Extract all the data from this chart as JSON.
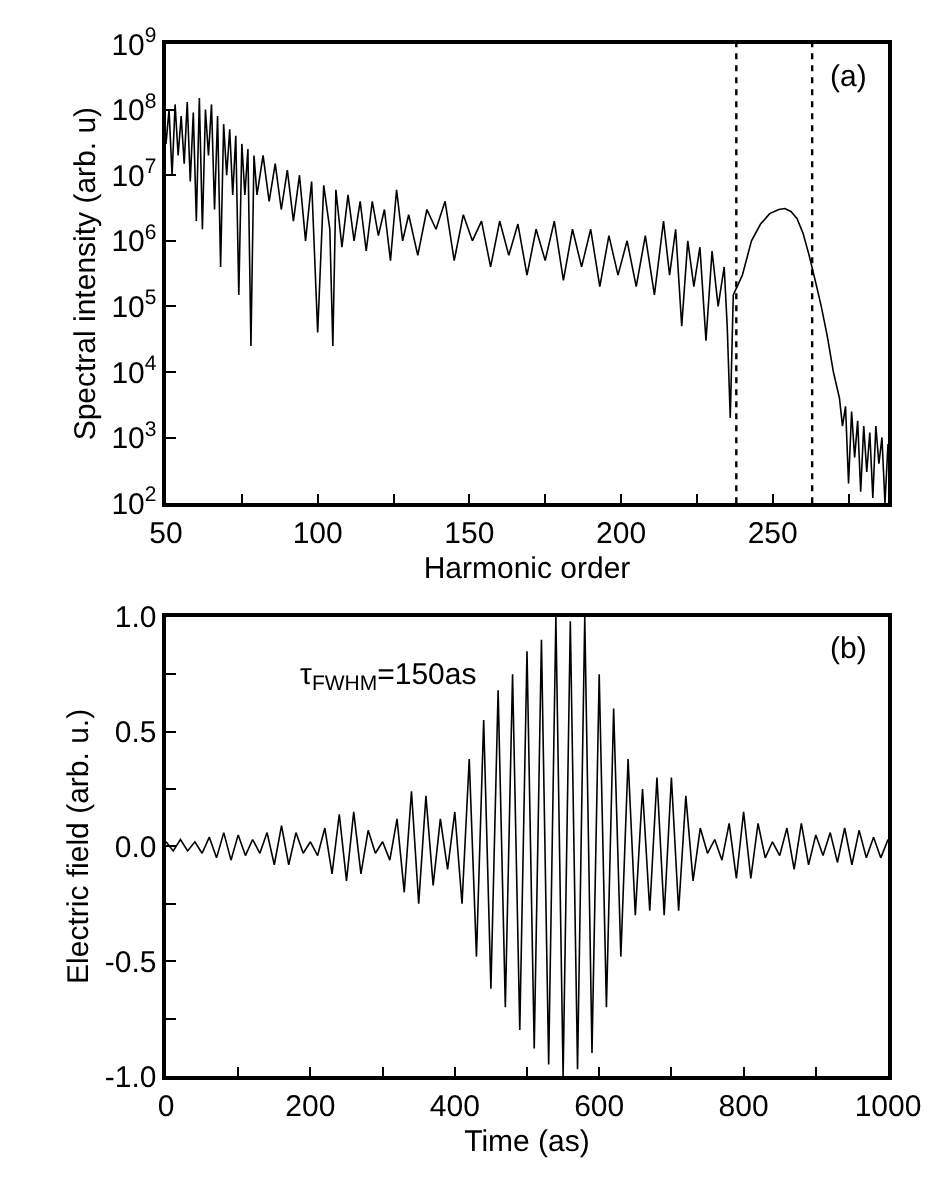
{
  "chart_data": [
    {
      "type": "line",
      "xlabel": "Harmonic order",
      "ylabel": "Spectral intensity (arb. u)",
      "log": "y",
      "marker": "none",
      "line_style": "solid",
      "xlim": [
        50,
        288
      ],
      "xticks": [
        50,
        {
          "value": 75,
          "label": null
        },
        100,
        {
          "value": 125,
          "label": null
        },
        150,
        {
          "value": 175,
          "label": null
        },
        200,
        {
          "value": 225,
          "label": null
        },
        250,
        {
          "value": 275,
          "label": null
        }
      ],
      "ylim": [
        100,
        1000000000
      ],
      "yticks": [
        {
          "value": 100,
          "label": "10$^{2}$"
        },
        {
          "value": 1000,
          "label": "10$^{3}$"
        },
        {
          "value": 10000,
          "label": "10$^{4}$"
        },
        {
          "value": 100000,
          "label": "10$^{5}$"
        },
        {
          "value": 1000000,
          "label": "10$^{6}$"
        },
        {
          "value": 10000000,
          "label": "10$^{7}$"
        },
        {
          "value": 100000000,
          "label": "10$^{8}$"
        },
        {
          "value": 1000000000,
          "label": "10$^{9}$"
        }
      ],
      "annotations": [
        "(a)"
      ],
      "ref_lines": [
        {
          "axis": "x",
          "value": 238,
          "line_style": "dotted",
          "color": "#000000"
        },
        {
          "axis": "x",
          "value": 263,
          "line_style": "dotted",
          "color": "#000000"
        }
      ],
      "series": [
        {
          "color": "#000000",
          "x": [
            50,
            51,
            52,
            53,
            54,
            55,
            56,
            57,
            58,
            59,
            60,
            61,
            62,
            63,
            64,
            65,
            66,
            67,
            68,
            69,
            70,
            71,
            72,
            73,
            74,
            75,
            76,
            77,
            78,
            79,
            80,
            82,
            84,
            86,
            88,
            90,
            92,
            94,
            96,
            98,
            100,
            102,
            104,
            105,
            106,
            108,
            110,
            112,
            114,
            116,
            118,
            120,
            122,
            124,
            126,
            128,
            130,
            133,
            136,
            139,
            142,
            145,
            148,
            151,
            154,
            157,
            160,
            163,
            166,
            169,
            172,
            175,
            178,
            181,
            184,
            187,
            190,
            193,
            196,
            199,
            202,
            205,
            208,
            211,
            214,
            216,
            218,
            220,
            222,
            224,
            226,
            228,
            230,
            232,
            234,
            235,
            236,
            237,
            240,
            243,
            246,
            249,
            252,
            254,
            256,
            258,
            260,
            262,
            264,
            266,
            268,
            270,
            272,
            273,
            274,
            275,
            276,
            277,
            278,
            279,
            280,
            281,
            282,
            283,
            284,
            285,
            286,
            287,
            288
          ],
          "values": [
            30000000,
            100000000,
            10000000,
            120000000,
            20000000,
            80000000,
            15000000,
            130000000,
            8000000,
            90000000,
            2000000,
            150000000,
            1500000,
            100000000,
            20000000,
            120000000,
            3000000,
            80000000,
            400000,
            60000000,
            10000000,
            50000000,
            5000000,
            40000000,
            150000,
            30000000,
            5000000,
            25000000,
            25000,
            20000000,
            5000000,
            20000000,
            4000000,
            15000000,
            3000000,
            12000000,
            2000000,
            10000000,
            1000000,
            8000000,
            40000,
            7000000,
            1500000,
            25000,
            6000000,
            800000,
            5000000,
            1000000,
            4000000,
            700000,
            4000000,
            1200000,
            3000000,
            500000,
            6000000,
            1000000,
            2500000,
            600000,
            3000000,
            1500000,
            4000000,
            500000,
            2500000,
            1000000,
            2000000,
            400000,
            2000000,
            600000,
            1800000,
            300000,
            1500000,
            500000,
            2000000,
            250000,
            1500000,
            400000,
            1500000,
            200000,
            1200000,
            300000,
            1000000,
            200000,
            1200000,
            150000,
            2000000,
            300000,
            1500000,
            50000,
            1000000,
            200000,
            800000,
            30000,
            700000,
            100000,
            400000,
            50000,
            2000,
            150000,
            300000,
            1000000,
            1800000,
            2600000,
            3000000,
            3100000,
            2800000,
            2200000,
            1300000,
            600000,
            250000,
            100000,
            35000,
            10000,
            4000,
            1500,
            3000,
            200,
            2500,
            500,
            1800,
            150,
            1500,
            300,
            1200,
            120,
            1500,
            400,
            1000,
            100,
            800
          ]
        }
      ]
    },
    {
      "type": "line",
      "xlabel": "Time (as)",
      "ylabel": "Electric field (arb. u.)",
      "marker": "none",
      "line_style": "solid",
      "xlim": [
        0,
        1000
      ],
      "xticks": [
        0,
        {
          "value": 100,
          "label": null
        },
        200,
        {
          "value": 300,
          "label": null
        },
        400,
        {
          "value": 500,
          "label": null
        },
        600,
        {
          "value": 700,
          "label": null
        },
        800,
        {
          "value": 900,
          "label": null
        },
        1000
      ],
      "ylim": [
        -1,
        1
      ],
      "yticks": [
        {
          "value": -1,
          "label": "-1.0"
        },
        {
          "value": -0.75,
          "label": null
        },
        {
          "value": -0.5,
          "label": "-0.5"
        },
        {
          "value": -0.25,
          "label": null
        },
        {
          "value": 0,
          "label": "0.0"
        },
        {
          "value": 0.25,
          "label": null
        },
        {
          "value": 0.5,
          "label": "0.5"
        },
        {
          "value": 0.75,
          "label": null
        },
        {
          "value": 1,
          "label": "1.0"
        }
      ],
      "annotations": [
        "(b)",
        "τ$_{FWHM}$=150as"
      ],
      "series": [
        {
          "color": "#000000",
          "x": [
            0,
            10,
            20,
            30,
            40,
            50,
            60,
            70,
            80,
            90,
            100,
            110,
            120,
            130,
            140,
            150,
            160,
            170,
            180,
            190,
            200,
            210,
            220,
            230,
            240,
            250,
            260,
            270,
            280,
            290,
            300,
            310,
            320,
            330,
            340,
            350,
            360,
            370,
            380,
            390,
            400,
            410,
            420,
            430,
            440,
            450,
            460,
            470,
            480,
            490,
            500,
            510,
            520,
            530,
            540,
            550,
            560,
            570,
            580,
            590,
            600,
            610,
            620,
            630,
            640,
            650,
            660,
            670,
            680,
            690,
            700,
            710,
            720,
            730,
            740,
            750,
            760,
            770,
            780,
            790,
            800,
            810,
            820,
            830,
            840,
            850,
            860,
            870,
            880,
            890,
            900,
            910,
            920,
            930,
            940,
            950,
            960,
            970,
            980,
            990,
            1000
          ],
          "values": [
            0.02,
            -0.02,
            0.03,
            -0.02,
            0.02,
            -0.03,
            0.04,
            -0.05,
            0.06,
            -0.06,
            0.05,
            -0.04,
            0.03,
            -0.03,
            0.06,
            -0.08,
            0.09,
            -0.08,
            0.06,
            -0.03,
            0.02,
            -0.04,
            0.08,
            -0.12,
            0.14,
            -0.15,
            0.15,
            -0.12,
            0.07,
            -0.03,
            0.02,
            -0.06,
            0.12,
            -0.2,
            0.24,
            -0.25,
            0.22,
            -0.17,
            0.12,
            -0.1,
            0.15,
            -0.25,
            0.38,
            -0.48,
            0.55,
            -0.62,
            0.68,
            -0.7,
            0.75,
            -0.8,
            0.85,
            -0.88,
            0.9,
            -0.95,
            1.0,
            -1.0,
            0.98,
            -0.97,
            1.0,
            -0.9,
            0.75,
            -0.7,
            0.6,
            -0.48,
            0.38,
            -0.3,
            0.25,
            -0.28,
            0.3,
            -0.3,
            0.3,
            -0.28,
            0.22,
            -0.15,
            0.08,
            -0.03,
            0.03,
            -0.06,
            0.1,
            -0.14,
            0.15,
            -0.14,
            0.1,
            -0.05,
            0.02,
            -0.04,
            0.08,
            -0.1,
            0.1,
            -0.08,
            0.05,
            -0.04,
            0.06,
            -0.07,
            0.08,
            -0.08,
            0.07,
            -0.05,
            0.04,
            -0.05,
            0.03
          ]
        }
      ]
    }
  ]
}
